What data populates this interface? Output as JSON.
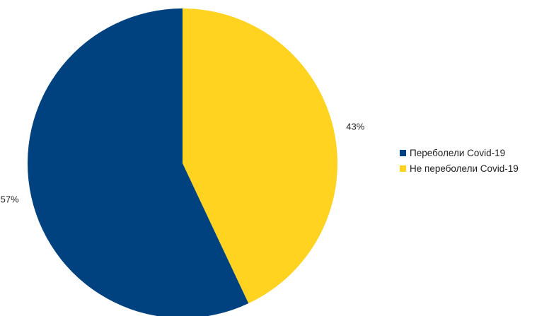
{
  "chart_data": {
    "type": "pie",
    "slices": [
      {
        "label": "Переболели Covid-19",
        "value": 57,
        "value_label": "57%",
        "color": "#00427F"
      },
      {
        "label": "Не переболели Covid-19",
        "value": 43,
        "value_label": "43%",
        "color": "#FFD320"
      }
    ],
    "start": "top, clockwise from the yellow slice",
    "legend_position": "right",
    "title": ""
  }
}
